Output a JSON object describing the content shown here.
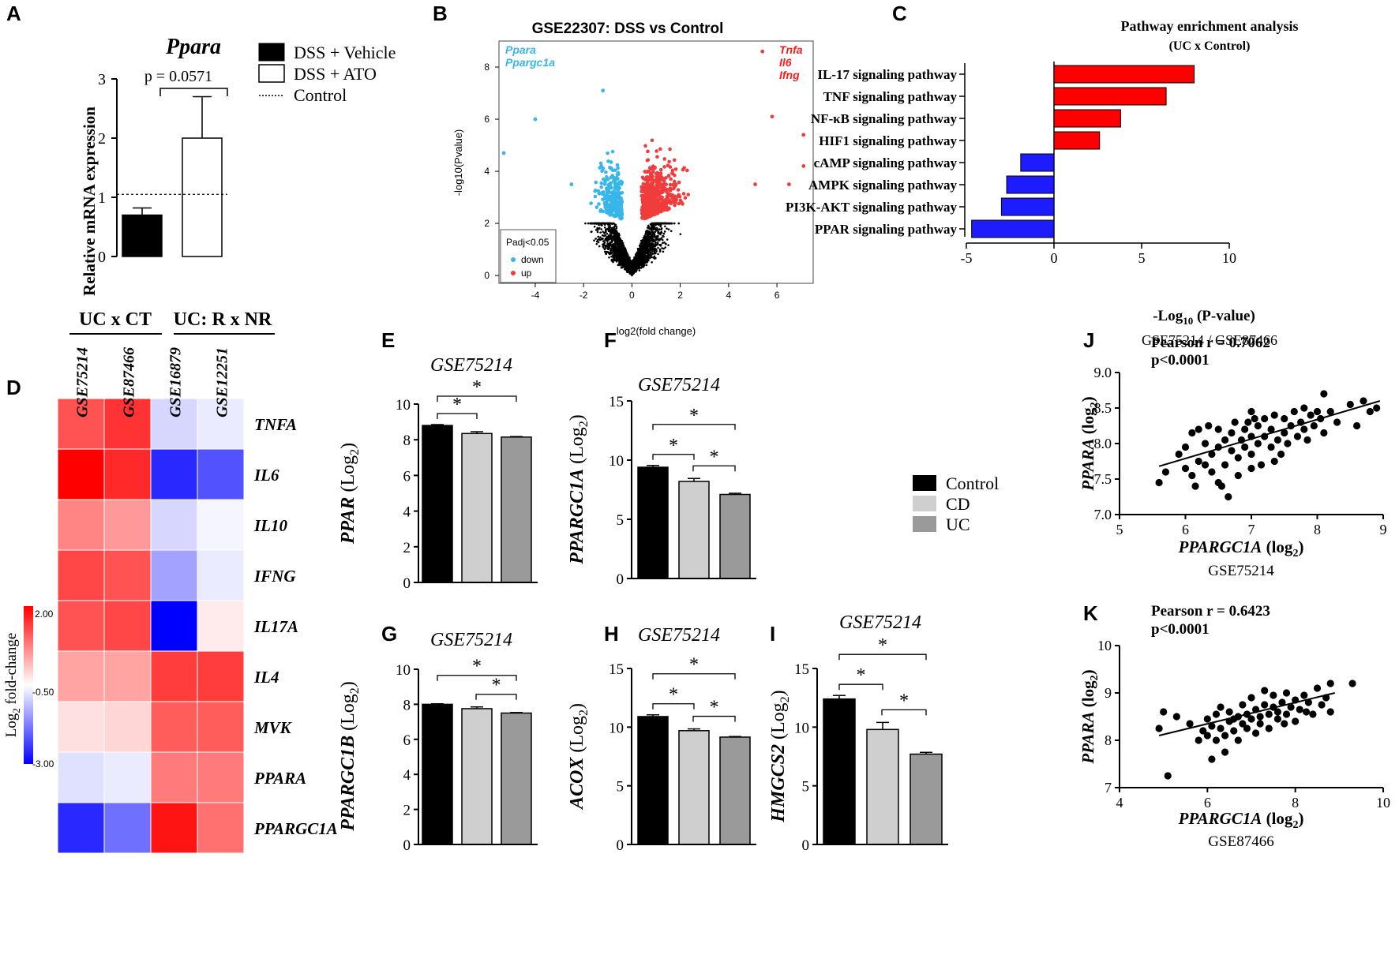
{
  "panels": {
    "A": {
      "label": "A",
      "title": "Ppara",
      "ylabel": "Relative mRNA expression",
      "ylim": [
        0,
        3
      ],
      "yticks": [
        "0",
        "1",
        "2",
        "3"
      ],
      "pvalue": "p = 0.0571",
      "control_level": 1.05,
      "legend": [
        {
          "label": "DSS + Vehicle",
          "style": "filled"
        },
        {
          "label": "DSS + ATO",
          "style": "open"
        },
        {
          "label": "Control",
          "style": "dotted"
        }
      ]
    },
    "B": {
      "label": "B",
      "title": "GSE22307: DSS vs Control",
      "xlabel": "log2(fold change)",
      "ylabel": "-log10(Pvalue)",
      "xticks": [
        "-4",
        "-2",
        "0",
        "2",
        "4",
        "6"
      ],
      "yticks": [
        "0",
        "2",
        "4",
        "6",
        "8"
      ],
      "genes_down": [
        "Ppara",
        "Ppargc1a"
      ],
      "genes_up": [
        "Tnfa",
        "Il6",
        "Ifng"
      ],
      "legend_title": "Padj<0.05",
      "legend_down": "down",
      "legend_up": "up"
    },
    "C": {
      "label": "C",
      "title": "Pathway enrichment analysis",
      "subtitle": "(UC x Control)",
      "xlabel_main": "-Log",
      "xlabel_sub": "10",
      "xlabel_tail": " (P-value)",
      "caption": "GSE75214 / GSE87466",
      "xticks": [
        "-5",
        "0",
        "5",
        "10"
      ]
    },
    "D": {
      "label": "D",
      "group1": "UC x CT",
      "group2": "UC: R x NR",
      "columns": [
        "GSE75214",
        "GSE87466",
        "GSE16879",
        "GSE12251"
      ],
      "rows": [
        "TNFA",
        "IL6",
        "IL10",
        "IFNG",
        "IL17A",
        "IL4",
        "MVK",
        "PPARA",
        "PPARGC1A"
      ],
      "colorbar_ticks": [
        "2.00",
        "-0.50",
        "-3.00"
      ],
      "colorbar_label_main": "Log",
      "colorbar_label_sub": "2",
      "colorbar_label_tail": " fold-change"
    },
    "E": {
      "label": "E",
      "title": "GSE75214",
      "ylabel": "PPAR",
      "ylabel_tail": " (Log",
      "ylabel_sub": "2",
      "ylabel_close": ")",
      "yticks": [
        "0",
        "2",
        "4",
        "6",
        "8",
        "10"
      ]
    },
    "F": {
      "label": "F",
      "title": "GSE75214",
      "ylabel": "PPARGC1A",
      "ylabel_tail": " (Log",
      "ylabel_sub": "2",
      "ylabel_close": ")",
      "yticks": [
        "0",
        "5",
        "10",
        "15"
      ]
    },
    "G": {
      "label": "G",
      "title": "GSE75214",
      "ylabel": "PPARGC1B",
      "ylabel_tail": " (Log",
      "ylabel_sub": "2",
      "ylabel_close": ")",
      "yticks": [
        "0",
        "2",
        "4",
        "6",
        "8",
        "10"
      ]
    },
    "H": {
      "label": "H",
      "title": "GSE75214",
      "ylabel": "ACOX",
      "ylabel_tail": " (Log",
      "ylabel_sub": "2",
      "ylabel_close": ")",
      "yticks": [
        "0",
        "5",
        "10",
        "15"
      ]
    },
    "I": {
      "label": "I",
      "title": "GSE75214",
      "ylabel": "HMGCS2",
      "ylabel_tail": " (Log",
      "ylabel_sub": "2",
      "ylabel_close": ")",
      "yticks": [
        "0",
        "5",
        "10",
        "15"
      ]
    },
    "J": {
      "label": "J",
      "stat1": "Pearson r = 0.7062",
      "stat2": "p<0.0001",
      "xlabel": "PPARGC1A",
      "ylabel": "PPARA",
      "axis_tail": " (log",
      "axis_sub": "2",
      "axis_close": ")",
      "caption": "GSE75214",
      "xticks": [
        "5",
        "6",
        "7",
        "8",
        "9"
      ],
      "yticks": [
        "7.0",
        "7.5",
        "8.0",
        "8.5",
        "9.0"
      ]
    },
    "K": {
      "label": "K",
      "stat1": "Pearson r = 0.6423",
      "stat2": "p<0.0001",
      "xlabel": "PPARGC1A",
      "ylabel": "PPARA",
      "axis_tail": " (log",
      "axis_sub": "2",
      "axis_close": ")",
      "caption": "GSE87466",
      "xticks": [
        "4",
        "6",
        "8",
        "10"
      ],
      "yticks": [
        "7",
        "8",
        "9",
        "10"
      ]
    },
    "EFGHI_legend": [
      {
        "label": "Control",
        "color": "#000000"
      },
      {
        "label": "CD",
        "color": "#cfcfcf"
      },
      {
        "label": "UC",
        "color": "#9a9a9a"
      }
    ]
  },
  "colors": {
    "up": "#ff0000",
    "down": "#1c1cff",
    "vol_up": "#f03c3c",
    "vol_down": "#38b6e8",
    "vol_ns": "#000000"
  },
  "chart_data": [
    {
      "id": "A",
      "type": "bar",
      "title": "Ppara",
      "categories": [
        "DSS + Vehicle",
        "DSS + ATO"
      ],
      "values": [
        0.7,
        2.0
      ],
      "errors": [
        0.12,
        0.7
      ],
      "ylim": [
        0,
        3
      ],
      "ylabel": "Relative mRNA expression",
      "reference_line": 1.05
    },
    {
      "id": "B",
      "type": "scatter",
      "title": "GSE22307: DSS vs Control",
      "xlabel": "log2(fold change)",
      "ylabel": "-log10(Pvalue)",
      "xlim": [
        -5.5,
        7.5
      ],
      "ylim": [
        -0.3,
        9
      ],
      "highlight_points_up": [
        [
          5.4,
          8.6
        ],
        [
          7.1,
          5.4
        ],
        [
          7.1,
          4.2
        ],
        [
          5.8,
          6.1
        ],
        [
          5.1,
          3.5
        ],
        [
          6.5,
          3.5
        ]
      ],
      "highlight_points_down": [
        [
          -5.3,
          4.7
        ],
        [
          -4.0,
          6.0
        ],
        [
          -1.2,
          7.1
        ],
        [
          -2.5,
          3.5
        ]
      ]
    },
    {
      "id": "C",
      "type": "bar",
      "orientation": "horizontal",
      "categories": [
        "IL-17 signaling pathway",
        "TNF signaling pathway",
        "NF-κB signaling pathway",
        "HIF1 signaling pathway",
        "cAMP signaling pathway",
        "AMPK signaling pathway",
        "PI3K-AKT signaling pathway",
        "PPAR signaling pathway"
      ],
      "values": [
        8.0,
        6.4,
        3.8,
        2.6,
        -1.9,
        -2.7,
        -3.0,
        -4.7
      ],
      "xlim": [
        -5,
        10
      ]
    },
    {
      "id": "D",
      "type": "heatmap",
      "columns": [
        "GSE75214",
        "GSE87466",
        "GSE16879",
        "GSE12251"
      ],
      "rows": [
        "TNFA",
        "IL6",
        "IL10",
        "IFNG",
        "IL17A",
        "IL4",
        "MVK",
        "PPARA",
        "PPARGC1A"
      ],
      "values": [
        [
          1.2,
          1.5,
          -0.9,
          -0.7
        ],
        [
          2.0,
          1.6,
          -2.6,
          -2.2
        ],
        [
          0.7,
          0.5,
          -0.9,
          -0.6
        ],
        [
          1.3,
          1.2,
          -1.4,
          -0.7
        ],
        [
          1.2,
          1.3,
          -3.0,
          -0.3
        ],
        [
          0.4,
          0.4,
          1.4,
          1.4
        ],
        [
          -0.2,
          -0.1,
          1.1,
          1.1
        ],
        [
          -0.8,
          -0.7,
          0.8,
          0.8
        ],
        [
          -2.6,
          -1.9,
          1.8,
          0.9
        ]
      ],
      "vmin": -3.0,
      "vmid": -0.5,
      "vmax": 2.0
    },
    {
      "id": "E",
      "type": "bar",
      "title": "GSE75214",
      "ylabel": "PPAR (Log2)",
      "categories": [
        "Control",
        "CD",
        "UC"
      ],
      "values": [
        8.8,
        8.35,
        8.15
      ],
      "errors": [
        0.05,
        0.1,
        0.03
      ],
      "ylim": [
        0,
        10
      ],
      "significance": [
        {
          "pair": [
            0,
            1
          ],
          "label": "*"
        },
        {
          "pair": [
            0,
            2
          ],
          "label": "*"
        }
      ]
    },
    {
      "id": "F",
      "type": "bar",
      "title": "GSE75214",
      "ylabel": "PPARGC1A (Log2)",
      "categories": [
        "Control",
        "CD",
        "UC"
      ],
      "values": [
        9.4,
        8.2,
        7.1
      ],
      "errors": [
        0.15,
        0.25,
        0.1
      ],
      "ylim": [
        0,
        15
      ],
      "significance": [
        {
          "pair": [
            0,
            1
          ],
          "label": "*"
        },
        {
          "pair": [
            0,
            2
          ],
          "label": "*"
        },
        {
          "pair": [
            1,
            2
          ],
          "label": "*"
        }
      ]
    },
    {
      "id": "G",
      "type": "bar",
      "title": "GSE75214",
      "ylabel": "PPARGC1B (Log2)",
      "categories": [
        "Control",
        "CD",
        "UC"
      ],
      "values": [
        8.0,
        7.75,
        7.5
      ],
      "errors": [
        0.03,
        0.1,
        0.03
      ],
      "ylim": [
        0,
        10
      ],
      "significance": [
        {
          "pair": [
            0,
            2
          ],
          "label": "*"
        },
        {
          "pair": [
            1,
            2
          ],
          "label": "*"
        }
      ]
    },
    {
      "id": "H",
      "type": "bar",
      "title": "GSE75214",
      "ylabel": "ACOX (Log2)",
      "categories": [
        "Control",
        "CD",
        "UC"
      ],
      "values": [
        10.9,
        9.7,
        9.15
      ],
      "errors": [
        0.15,
        0.15,
        0.05
      ],
      "ylim": [
        0,
        15
      ],
      "significance": [
        {
          "pair": [
            0,
            1
          ],
          "label": "*"
        },
        {
          "pair": [
            0,
            2
          ],
          "label": "*"
        },
        {
          "pair": [
            1,
            2
          ],
          "label": "*"
        }
      ]
    },
    {
      "id": "I",
      "type": "bar",
      "title": "GSE75214",
      "ylabel": "HMGCS2 (Log2)",
      "categories": [
        "Control",
        "CD",
        "UC"
      ],
      "values": [
        12.4,
        9.8,
        7.7
      ],
      "errors": [
        0.3,
        0.6,
        0.15
      ],
      "ylim": [
        0,
        15
      ],
      "significance": [
        {
          "pair": [
            0,
            1
          ],
          "label": "*"
        },
        {
          "pair": [
            0,
            2
          ],
          "label": "*"
        },
        {
          "pair": [
            1,
            2
          ],
          "label": "*"
        }
      ]
    },
    {
      "id": "J",
      "type": "scatter",
      "xlabel": "PPARGC1A (log2)",
      "ylabel": "PPARA (log2)",
      "xlim": [
        5,
        9
      ],
      "ylim": [
        7.0,
        9.0
      ],
      "fit_line": [
        [
          5.6,
          7.68
        ],
        [
          8.95,
          8.6
        ]
      ],
      "points": [
        [
          5.6,
          7.45
        ],
        [
          5.7,
          7.6
        ],
        [
          5.9,
          7.85
        ],
        [
          6.0,
          7.65
        ],
        [
          6.0,
          7.95
        ],
        [
          6.1,
          8.15
        ],
        [
          6.1,
          7.55
        ],
        [
          6.2,
          7.75
        ],
        [
          6.2,
          8.2
        ],
        [
          6.3,
          7.7
        ],
        [
          6.3,
          8.0
        ],
        [
          6.35,
          8.25
        ],
        [
          6.4,
          7.6
        ],
        [
          6.4,
          7.85
        ],
        [
          6.5,
          7.95
        ],
        [
          6.5,
          8.2
        ],
        [
          6.5,
          7.45
        ],
        [
          6.6,
          7.7
        ],
        [
          6.6,
          8.05
        ],
        [
          6.65,
          7.25
        ],
        [
          6.7,
          7.9
        ],
        [
          6.7,
          8.15
        ],
        [
          6.75,
          8.3
        ],
        [
          6.8,
          7.55
        ],
        [
          6.8,
          7.8
        ],
        [
          6.85,
          8.05
        ],
        [
          6.9,
          8.2
        ],
        [
          6.9,
          7.95
        ],
        [
          6.95,
          8.3
        ],
        [
          7.0,
          7.65
        ],
        [
          7.0,
          7.85
        ],
        [
          7.0,
          8.1
        ],
        [
          7.05,
          8.35
        ],
        [
          7.1,
          8.0
        ],
        [
          7.1,
          8.25
        ],
        [
          7.15,
          7.7
        ],
        [
          7.2,
          8.1
        ],
        [
          7.2,
          8.35
        ],
        [
          7.3,
          7.95
        ],
        [
          7.3,
          8.2
        ],
        [
          7.35,
          8.4
        ],
        [
          7.4,
          8.05
        ],
        [
          7.45,
          7.85
        ],
        [
          7.5,
          8.15
        ],
        [
          7.5,
          8.35
        ],
        [
          7.55,
          8.0
        ],
        [
          7.6,
          8.25
        ],
        [
          7.65,
          8.45
        ],
        [
          7.7,
          8.1
        ],
        [
          7.75,
          8.3
        ],
        [
          7.8,
          8.2
        ],
        [
          7.8,
          8.5
        ],
        [
          7.85,
          8.05
        ],
        [
          7.9,
          8.4
        ],
        [
          7.95,
          8.25
        ],
        [
          8.0,
          8.45
        ],
        [
          8.05,
          8.35
        ],
        [
          8.1,
          8.15
        ],
        [
          8.1,
          8.7
        ],
        [
          8.2,
          8.45
        ],
        [
          8.3,
          8.3
        ],
        [
          8.5,
          8.55
        ],
        [
          8.6,
          8.25
        ],
        [
          8.7,
          8.6
        ],
        [
          8.8,
          8.45
        ],
        [
          8.9,
          8.5
        ],
        [
          7.35,
          7.75
        ],
        [
          6.15,
          7.4
        ],
        [
          6.55,
          7.4
        ],
        [
          7.0,
          8.45
        ]
      ]
    },
    {
      "id": "K",
      "type": "scatter",
      "xlabel": "PPARGC1A (log2)",
      "ylabel": "PPARA (log2)",
      "xlim": [
        4,
        10
      ],
      "ylim": [
        7,
        10
      ],
      "fit_line": [
        [
          4.9,
          8.1
        ],
        [
          8.9,
          9.0
        ]
      ],
      "points": [
        [
          4.9,
          8.25
        ],
        [
          5.0,
          8.6
        ],
        [
          5.1,
          7.25
        ],
        [
          5.3,
          8.5
        ],
        [
          5.6,
          8.35
        ],
        [
          5.8,
          8.0
        ],
        [
          5.9,
          8.2
        ],
        [
          6.0,
          8.45
        ],
        [
          6.0,
          8.1
        ],
        [
          6.1,
          7.6
        ],
        [
          6.1,
          8.3
        ],
        [
          6.2,
          8.0
        ],
        [
          6.2,
          8.55
        ],
        [
          6.3,
          8.25
        ],
        [
          6.3,
          8.7
        ],
        [
          6.4,
          8.1
        ],
        [
          6.4,
          7.75
        ],
        [
          6.5,
          8.4
        ],
        [
          6.5,
          8.6
        ],
        [
          6.6,
          8.2
        ],
        [
          6.7,
          8.5
        ],
        [
          6.7,
          8.0
        ],
        [
          6.8,
          8.35
        ],
        [
          6.8,
          8.75
        ],
        [
          6.9,
          8.55
        ],
        [
          6.9,
          8.25
        ],
        [
          7.0,
          8.45
        ],
        [
          7.0,
          8.9
        ],
        [
          7.1,
          8.15
        ],
        [
          7.1,
          8.65
        ],
        [
          7.2,
          8.5
        ],
        [
          7.2,
          8.35
        ],
        [
          7.3,
          8.75
        ],
        [
          7.3,
          9.05
        ],
        [
          7.4,
          8.55
        ],
        [
          7.4,
          8.25
        ],
        [
          7.5,
          8.7
        ],
        [
          7.5,
          8.95
        ],
        [
          7.6,
          8.45
        ],
        [
          7.6,
          8.6
        ],
        [
          7.7,
          8.8
        ],
        [
          7.8,
          9.0
        ],
        [
          7.8,
          8.55
        ],
        [
          7.9,
          8.7
        ],
        [
          8.0,
          8.85
        ],
        [
          8.0,
          8.4
        ],
        [
          8.1,
          8.65
        ],
        [
          8.2,
          8.95
        ],
        [
          8.3,
          8.8
        ],
        [
          8.4,
          8.55
        ],
        [
          8.5,
          9.1
        ],
        [
          8.6,
          8.75
        ],
        [
          8.7,
          8.9
        ],
        [
          8.8,
          9.2
        ],
        [
          8.8,
          8.6
        ],
        [
          9.3,
          9.2
        ],
        [
          6.6,
          8.45
        ],
        [
          7.75,
          8.35
        ],
        [
          8.25,
          8.6
        ]
      ]
    }
  ]
}
